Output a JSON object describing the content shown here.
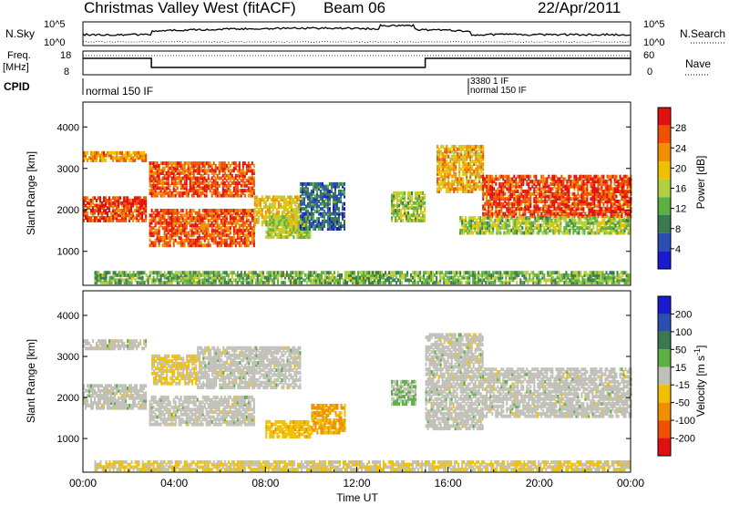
{
  "header": {
    "station": "Christmas Valley West (fitACF)",
    "beam": "Beam 06",
    "date": "22/Apr/2011"
  },
  "sky_panel": {
    "left_label": "N.Sky",
    "right_label": "N.Search",
    "left_ticks": [
      "10^5",
      "10^0"
    ],
    "right_ticks": [
      "10^5",
      "10^0"
    ]
  },
  "freq_panel": {
    "left_label": "Freq.\n[MHz]",
    "right_label": "Nave",
    "left_ticks": [
      "18",
      "8"
    ],
    "right_ticks": [
      "60",
      "0"
    ]
  },
  "cpid": {
    "label": "CPID",
    "modes": [
      {
        "name": "normal 150 IF",
        "start_hour": 0.0
      },
      {
        "name": "3380 1 IF",
        "start_hour": 16.9
      },
      {
        "name": "normal 150 IF",
        "start_hour": 17.0
      }
    ]
  },
  "x_axis": {
    "label": "Time UT",
    "range_hours": [
      0,
      24
    ],
    "tick_labels": [
      "00:00",
      "04:00",
      "08:00",
      "12:00",
      "16:00",
      "20:00",
      "00:00"
    ]
  },
  "chart_data": [
    {
      "type": "heatmap",
      "name": "power",
      "ylabel": "Slant Range [km]",
      "yticks": [
        1000,
        2000,
        3000,
        4000
      ],
      "ylim": [
        180,
        4600
      ],
      "colorbar": {
        "label": "Power [dB]",
        "tick_labels": [
          "28",
          "24",
          "20",
          "16",
          "12",
          "8",
          "4"
        ],
        "range": [
          0,
          30
        ],
        "colors": [
          "#1a1ad0",
          "#2a4fb0",
          "#3a7a50",
          "#5ab040",
          "#b0d040",
          "#f0c000",
          "#f09000",
          "#f05000",
          "#e01010"
        ]
      },
      "bands": [
        {
          "t0": 0.0,
          "t1": 2.8,
          "r0": 1700,
          "r1": 2300,
          "power": 26
        },
        {
          "t0": 0.0,
          "t1": 2.8,
          "r0": 3150,
          "r1": 3350,
          "power": 22
        },
        {
          "t0": 2.9,
          "t1": 7.5,
          "r0": 1100,
          "r1": 2000,
          "power": 25
        },
        {
          "t0": 2.9,
          "t1": 7.5,
          "r0": 2300,
          "r1": 3100,
          "power": 25
        },
        {
          "t0": 7.5,
          "t1": 9.5,
          "r0": 1600,
          "r1": 2300,
          "power": 18
        },
        {
          "t0": 8.0,
          "t1": 10.0,
          "r0": 1300,
          "r1": 1800,
          "power": 15
        },
        {
          "t0": 9.5,
          "t1": 11.5,
          "r0": 1500,
          "r1": 2600,
          "power": 7
        },
        {
          "t0": 13.5,
          "t1": 15.0,
          "r0": 1700,
          "r1": 2400,
          "power": 14
        },
        {
          "t0": 15.5,
          "t1": 17.5,
          "r0": 2400,
          "r1": 3500,
          "power": 20
        },
        {
          "t0": 17.5,
          "t1": 24.0,
          "r0": 1800,
          "r1": 2800,
          "power": 26
        },
        {
          "t0": 16.5,
          "t1": 24.0,
          "r0": 1400,
          "r1": 1800,
          "power": 14
        },
        {
          "t0": 0.5,
          "t1": 24.0,
          "r0": 200,
          "r1": 500,
          "power": 12
        }
      ]
    },
    {
      "type": "heatmap",
      "name": "velocity",
      "ylabel": "Slant Range [km]",
      "yticks": [
        1000,
        2000,
        3000,
        4000
      ],
      "ylim": [
        180,
        4600
      ],
      "colorbar": {
        "label": "Velocity [m s^-1]",
        "tick_labels": [
          "200",
          "100",
          "50",
          "15",
          "-15",
          "-50",
          "-100",
          "-200"
        ],
        "range": [
          -250,
          250
        ],
        "colors": [
          "#e01010",
          "#f05000",
          "#f09000",
          "#f0c000",
          "#c0c0b8",
          "#5ab040",
          "#3a7a50",
          "#2a4fb0",
          "#1a1ad0"
        ]
      },
      "bands": [
        {
          "t0": 0.0,
          "t1": 2.8,
          "r0": 1700,
          "r1": 2300,
          "velocity": 0
        },
        {
          "t0": 0.0,
          "t1": 2.8,
          "r0": 3150,
          "r1": 3350,
          "velocity": 0
        },
        {
          "t0": 2.9,
          "t1": 7.5,
          "r0": 1300,
          "r1": 2000,
          "velocity": 0
        },
        {
          "t0": 3.0,
          "t1": 5.0,
          "r0": 2300,
          "r1": 3000,
          "velocity": -30
        },
        {
          "t0": 5.0,
          "t1": 9.5,
          "r0": 2200,
          "r1": 3200,
          "velocity": 0
        },
        {
          "t0": 8.0,
          "t1": 10.0,
          "r0": 1000,
          "r1": 1400,
          "velocity": -60
        },
        {
          "t0": 10.0,
          "t1": 11.5,
          "r0": 1100,
          "r1": 1800,
          "velocity": -90
        },
        {
          "t0": 13.5,
          "t1": 14.6,
          "r0": 1800,
          "r1": 2400,
          "velocity": 30
        },
        {
          "t0": 15.0,
          "t1": 17.5,
          "r0": 1200,
          "r1": 3500,
          "velocity": 0
        },
        {
          "t0": 17.5,
          "t1": 24.0,
          "r0": 1500,
          "r1": 2700,
          "velocity": 0
        },
        {
          "t0": 0.5,
          "t1": 24.0,
          "r0": 200,
          "r1": 400,
          "velocity": -30
        }
      ]
    }
  ]
}
